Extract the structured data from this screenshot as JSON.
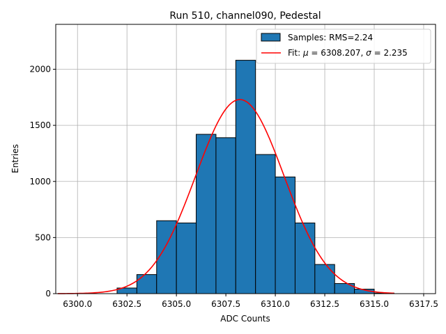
{
  "chart_data": {
    "type": "bar",
    "title": "Run 510, channel090, Pedestal",
    "xlabel": "ADC Counts",
    "ylabel": "Entries",
    "xlim": [
      6298.9,
      6318.1
    ],
    "ylim": [
      0,
      2400
    ],
    "xticks": [
      6300.0,
      6302.5,
      6305.0,
      6307.5,
      6310.0,
      6312.5,
      6315.0,
      6317.5
    ],
    "xtick_labels": [
      "6300.0",
      "6302.5",
      "6305.0",
      "6307.5",
      "6310.0",
      "6312.5",
      "6315.0",
      "6317.5"
    ],
    "yticks": [
      0,
      500,
      1000,
      1500,
      2000
    ],
    "ytick_labels": [
      "0",
      "500",
      "1000",
      "1500",
      "2000"
    ],
    "grid": true,
    "legend_position": "top-right",
    "histogram": {
      "name": "Samples: RMS=2.24",
      "color": "#1f77b4",
      "edge_color": "#000000",
      "bins": [
        {
          "x0": 6302.0,
          "x1": 6303.0,
          "count": 50
        },
        {
          "x0": 6303.0,
          "x1": 6304.0,
          "count": 170
        },
        {
          "x0": 6304.0,
          "x1": 6305.0,
          "count": 650
        },
        {
          "x0": 6305.0,
          "x1": 6306.0,
          "count": 630
        },
        {
          "x0": 6306.0,
          "x1": 6307.0,
          "count": 1420
        },
        {
          "x0": 6307.0,
          "x1": 6308.0,
          "count": 1390
        },
        {
          "x0": 6308.0,
          "x1": 6309.0,
          "count": 2080
        },
        {
          "x0": 6309.0,
          "x1": 6310.0,
          "count": 1240
        },
        {
          "x0": 6310.0,
          "x1": 6311.0,
          "count": 1040
        },
        {
          "x0": 6311.0,
          "x1": 6312.0,
          "count": 630
        },
        {
          "x0": 6312.0,
          "x1": 6313.0,
          "count": 260
        },
        {
          "x0": 6313.0,
          "x1": 6314.0,
          "count": 90
        },
        {
          "x0": 6314.0,
          "x1": 6315.0,
          "count": 40
        },
        {
          "x0": 6315.0,
          "x1": 6316.0,
          "count": 5
        }
      ]
    },
    "fit": {
      "name": "Fit: μ = 6308.207, σ = 2.235",
      "legend_prefix": "Fit: ",
      "mu_symbol": "μ",
      "mu_value": " = 6308.207, ",
      "sigma_symbol": "σ",
      "sigma_value": " = 2.235",
      "color": "#ff0000",
      "mu": 6308.207,
      "sigma": 2.235,
      "amplitude": 1730,
      "x_range": [
        6299.0,
        6316.0
      ]
    }
  }
}
